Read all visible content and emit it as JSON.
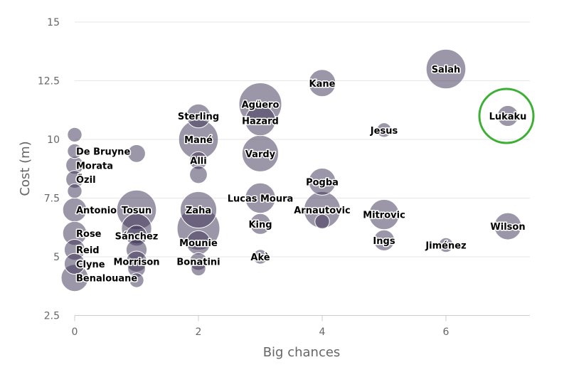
{
  "chart_data": {
    "type": "scatter",
    "variant": "bubble",
    "xlabel": "Big chances",
    "ylabel": "Cost (m)",
    "xlim": [
      0,
      7.3
    ],
    "ylim": [
      2.5,
      15
    ],
    "xticks": [
      "0",
      "2",
      "4",
      "6"
    ],
    "yticks": [
      "2.5",
      "5",
      "7.5",
      "10",
      "12.5",
      "15"
    ],
    "grid": true,
    "bubble_color": "#3a2d54",
    "bubble_opacity": 0.5,
    "highlight_color": "#3cb034",
    "highlighted": "Lukaku",
    "points": [
      {
        "label": "Salah",
        "x": 6,
        "y": 13.0,
        "size": 9
      },
      {
        "label": "Kane",
        "x": 4,
        "y": 12.4,
        "size": 5
      },
      {
        "label": "Agüero",
        "x": 3,
        "y": 11.5,
        "size": 10
      },
      {
        "label": "Hazard",
        "x": 3,
        "y": 10.8,
        "size": 6
      },
      {
        "label": "Sterling",
        "x": 2,
        "y": 11.0,
        "size": 4
      },
      {
        "label": "Lukaku",
        "x": 7,
        "y": 11.0,
        "size": 3
      },
      {
        "label": "Jesus",
        "x": 5,
        "y": 10.4,
        "size": 1
      },
      {
        "label": "Mané",
        "x": 2,
        "y": 10.0,
        "size": 9
      },
      {
        "label": "De Bruyne",
        "x": 0,
        "y": 9.5,
        "size": 1
      },
      {
        "label": "",
        "x": 1,
        "y": 9.4,
        "size": 2
      },
      {
        "label": "Vardy",
        "x": 3,
        "y": 9.4,
        "size": 8
      },
      {
        "label": "Alli",
        "x": 2,
        "y": 9.1,
        "size": 2
      },
      {
        "label": "Morata",
        "x": 0,
        "y": 8.9,
        "size": 2
      },
      {
        "label": "",
        "x": 2,
        "y": 8.5,
        "size": 2
      },
      {
        "label": "Özil",
        "x": 0,
        "y": 8.3,
        "size": 2
      },
      {
        "label": "Pogba",
        "x": 4,
        "y": 8.2,
        "size": 5
      },
      {
        "label": "Lucas Moura",
        "x": 3,
        "y": 7.5,
        "size": 6
      },
      {
        "label": "Arnautovic",
        "x": 4,
        "y": 7.0,
        "size": 8
      },
      {
        "label": "Antonio",
        "x": 0,
        "y": 7.0,
        "size": 4
      },
      {
        "label": "Tosun",
        "x": 1,
        "y": 7.0,
        "size": 9
      },
      {
        "label": "Zaha",
        "x": 2,
        "y": 7.0,
        "size": 8
      },
      {
        "label": "",
        "x": 4,
        "y": 6.5,
        "size": 1
      },
      {
        "label": "",
        "x": 2,
        "y": 6.2,
        "size": 10
      },
      {
        "label": "Mitrovic",
        "x": 5,
        "y": 6.8,
        "size": 6
      },
      {
        "label": "Wilson",
        "x": 7,
        "y": 6.3,
        "size": 5
      },
      {
        "label": "King",
        "x": 3,
        "y": 6.4,
        "size": 3
      },
      {
        "label": "",
        "x": 1,
        "y": 6.2,
        "size": 6
      },
      {
        "label": "Mounie",
        "x": 2,
        "y": 5.6,
        "size": 4
      },
      {
        "label": "Rose",
        "x": 0,
        "y": 6.0,
        "size": 4
      },
      {
        "label": "Sánchez",
        "x": 1,
        "y": 5.9,
        "size": 3
      },
      {
        "label": "Ings",
        "x": 5,
        "y": 5.7,
        "size": 3
      },
      {
        "label": "Jiménez",
        "x": 6,
        "y": 5.5,
        "size": 1
      },
      {
        "label": "Reid",
        "x": 0,
        "y": 5.3,
        "size": 3
      },
      {
        "label": "",
        "x": 1,
        "y": 5.3,
        "size": 3
      },
      {
        "label": "Akè",
        "x": 3,
        "y": 5.0,
        "size": 1
      },
      {
        "label": "Morrison",
        "x": 1,
        "y": 4.8,
        "size": 3
      },
      {
        "label": "Bonatini",
        "x": 2,
        "y": 4.8,
        "size": 2
      },
      {
        "label": "Clyne",
        "x": 0,
        "y": 4.7,
        "size": 3
      },
      {
        "label": "",
        "x": 1,
        "y": 4.5,
        "size": 2
      },
      {
        "label": "",
        "x": 2,
        "y": 4.5,
        "size": 1
      },
      {
        "label": "Benalouane",
        "x": 0,
        "y": 4.1,
        "size": 5
      },
      {
        "label": "",
        "x": 1,
        "y": 4.0,
        "size": 1
      },
      {
        "label": "",
        "x": 0,
        "y": 10.2,
        "size": 1
      },
      {
        "label": "",
        "x": 0,
        "y": 7.8,
        "size": 1
      }
    ]
  }
}
